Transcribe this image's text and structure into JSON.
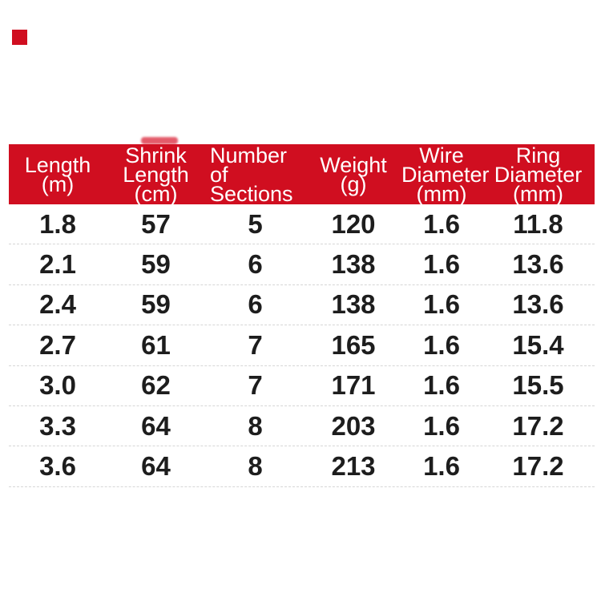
{
  "colors": {
    "header_red": "#d00e20",
    "header_text": "#ffffff",
    "cell_text": "#1d1d1d",
    "row_separator": "#d6d6d6",
    "background": "#ffffff",
    "corner_marker": "#d00e20"
  },
  "table": {
    "headers": [
      [
        "Length",
        "(m)"
      ],
      [
        "Shrink",
        "Length",
        "(cm)"
      ],
      [
        "Number of",
        "Sections"
      ],
      [
        "Weight",
        "(g)"
      ],
      [
        "Wire",
        "Diameter",
        "(mm)"
      ],
      [
        "Ring",
        "Diameter",
        "(mm)"
      ]
    ],
    "rows": [
      [
        "1.8",
        "57",
        "5",
        "120",
        "1.6",
        "11.8"
      ],
      [
        "2.1",
        "59",
        "6",
        "138",
        "1.6",
        "13.6"
      ],
      [
        "2.4",
        "59",
        "6",
        "138",
        "1.6",
        "13.6"
      ],
      [
        "2.7",
        "61",
        "7",
        "165",
        "1.6",
        "15.4"
      ],
      [
        "3.0",
        "62",
        "7",
        "171",
        "1.6",
        "15.5"
      ],
      [
        "3.3",
        "64",
        "8",
        "203",
        "1.6",
        "17.2"
      ],
      [
        "3.6",
        "64",
        "8",
        "213",
        "1.6",
        "17.2"
      ]
    ]
  },
  "chart_data": {
    "type": "table",
    "title": "",
    "columns": [
      "Length (m)",
      "Shrink Length (cm)",
      "Number of Sections",
      "Weight (g)",
      "Wire Diameter (mm)",
      "Ring Diameter (mm)"
    ],
    "rows": [
      [
        1.8,
        57,
        5,
        120,
        1.6,
        11.8
      ],
      [
        2.1,
        59,
        6,
        138,
        1.6,
        13.6
      ],
      [
        2.4,
        59,
        6,
        138,
        1.6,
        13.6
      ],
      [
        2.7,
        61,
        7,
        165,
        1.6,
        15.4
      ],
      [
        3.0,
        62,
        7,
        171,
        1.6,
        15.5
      ],
      [
        3.3,
        64,
        8,
        203,
        1.6,
        17.2
      ],
      [
        3.6,
        64,
        8,
        213,
        1.6,
        17.2
      ]
    ]
  }
}
